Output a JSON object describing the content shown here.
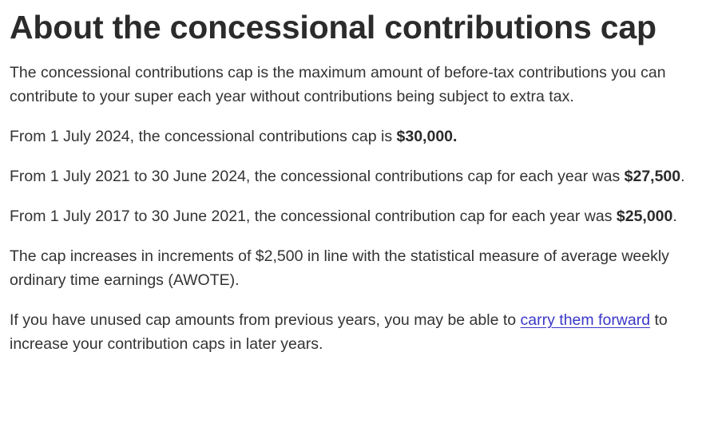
{
  "heading": "About the concessional contributions cap",
  "paragraphs": {
    "intro": "The concessional contributions cap is the maximum amount of before-tax contributions you can contribute to your super each year without contributions being subject to extra tax.",
    "current": {
      "text": "From 1 July 2024, the concessional contributions cap is ",
      "amount": "$30,000."
    },
    "period_2021": {
      "text": "From 1 July 2021 to 30 June 2024, the concessional contributions cap for each year was ",
      "amount": "$27,500",
      "suffix": "."
    },
    "period_2017": {
      "text": "From 1 July 2017 to 30 June 2021, the concessional contribution cap for each year was ",
      "amount": "$25,000",
      "suffix": "."
    },
    "increments": "The cap increases in increments of $2,500 in line with the statistical measure of average weekly ordinary time earnings (AWOTE).",
    "carry_forward": {
      "before": "If you have unused cap amounts from previous years, you may be able to ",
      "link": "carry them forward",
      "after": " to increase your contribution caps in later years."
    }
  }
}
